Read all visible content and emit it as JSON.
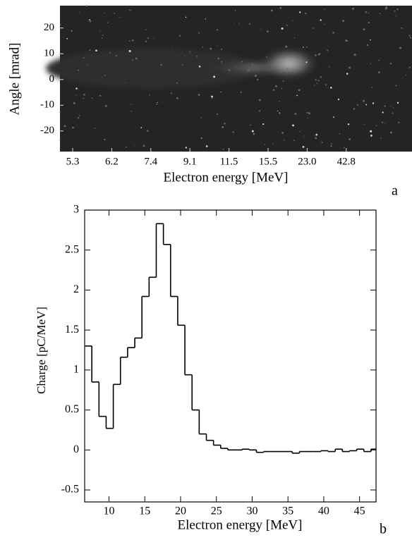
{
  "chart_data": [
    {
      "type": "image",
      "label": "a",
      "xlabel": "Electron energy [MeV]",
      "ylabel": "Angle [mrad]",
      "categories": [
        "5.3",
        "6.2",
        "7.4",
        "9.1",
        "11.5",
        "15.5",
        "23.0",
        "42.8"
      ],
      "ylim": [
        -28,
        28.7
      ],
      "yticks": [
        20,
        10,
        0,
        -10,
        -20
      ]
    },
    {
      "type": "histogram",
      "label": "b",
      "xlabel": "Electron energy [MeV]",
      "ylabel": "Charge [pC/MeV]",
      "color": "#000000",
      "bins": [
        6.6,
        7.6,
        8.6,
        9.6,
        10.6,
        11.6,
        12.6,
        13.6,
        14.6,
        15.6,
        16.6,
        17.6,
        18.6,
        19.6,
        20.6,
        21.6,
        22.6,
        23.6,
        24.6,
        25.6,
        26.6,
        27.6,
        28.6,
        29.6,
        30.6,
        31.6,
        32.6,
        33.6,
        34.6,
        35.6,
        36.6,
        37.6,
        38.6,
        39.6,
        40.6,
        41.6,
        42.6,
        43.6,
        44.6,
        45.6,
        46.6,
        47.3
      ],
      "values": [
        1.3,
        0.85,
        0.42,
        0.27,
        0.82,
        1.16,
        1.28,
        1.4,
        1.92,
        2.16,
        2.83,
        2.57,
        1.92,
        1.56,
        0.94,
        0.5,
        0.2,
        0.12,
        0.06,
        0.02,
        0,
        0,
        0.01,
        0,
        -0.03,
        -0.02,
        -0.02,
        -0.02,
        -0.02,
        -0.04,
        -0.02,
        -0.02,
        -0.02,
        -0.01,
        -0.02,
        0.01,
        -0.02,
        -0.01,
        0.01,
        -0.02,
        0.01
      ],
      "xlim": [
        6.6,
        47.3
      ],
      "xticks": [
        10,
        15,
        20,
        25,
        30,
        35,
        40,
        45
      ],
      "ylim": [
        -0.65,
        3
      ],
      "yticks": [
        3,
        2.5,
        2,
        1.5,
        1,
        0.5,
        0,
        -0.5
      ]
    }
  ]
}
